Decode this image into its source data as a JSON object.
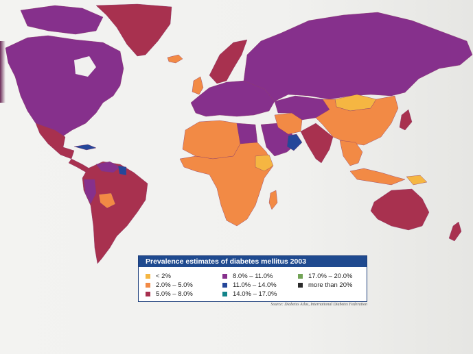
{
  "legend": {
    "title": "Prevalence estimates of diabetes mellitus 2003",
    "items": [
      {
        "label": "< 2%",
        "color": "#f5b642"
      },
      {
        "label": "2.0% – 5.0%",
        "color": "#f28a45"
      },
      {
        "label": "5.0% – 8.0%",
        "color": "#a8314f"
      },
      {
        "label": "8.0% – 11.0%",
        "color": "#86308c"
      },
      {
        "label": "11.0% – 14.0%",
        "color": "#25479a"
      },
      {
        "label": "14.0% – 17.0%",
        "color": "#13848a"
      },
      {
        "label": "17.0% – 20.0%",
        "color": "#72a356"
      },
      {
        "label": "more than 20%",
        "color": "#2b2b2b"
      }
    ]
  },
  "source": "Source: Diabetes Atlas, International Diabetes Federation",
  "regions": [
    {
      "name": "North America",
      "color": "#86308c"
    },
    {
      "name": "Greenland",
      "color": "#a8314f"
    },
    {
      "name": "Canadian Arctic islands",
      "color": "#86308c"
    },
    {
      "name": "Mexico",
      "color": "#a8314f"
    },
    {
      "name": "Central America",
      "color": "#a8314f"
    },
    {
      "name": "Cuba",
      "color": "#25479a"
    },
    {
      "name": "South America",
      "color": "#a8314f"
    },
    {
      "name": "Venezuela",
      "color": "#86308c"
    },
    {
      "name": "Guianas",
      "color": "#25479a"
    },
    {
      "name": "Bolivia",
      "color": "#f28a45"
    },
    {
      "name": "Peru",
      "color": "#86308c"
    },
    {
      "name": "Iceland",
      "color": "#f28a45"
    },
    {
      "name": "Scandinavia",
      "color": "#a8314f"
    },
    {
      "name": "United Kingdom",
      "color": "#f28a45"
    },
    {
      "name": "Europe",
      "color": "#86308c"
    },
    {
      "name": "North Africa",
      "color": "#f28a45"
    },
    {
      "name": "Egypt",
      "color": "#86308c"
    },
    {
      "name": "Sub-Saharan Africa",
      "color": "#f28a45"
    },
    {
      "name": "Ethiopia",
      "color": "#f5b642"
    },
    {
      "name": "Madagascar",
      "color": "#f28a45"
    },
    {
      "name": "Arabian Peninsula",
      "color": "#86308c"
    },
    {
      "name": "Oman",
      "color": "#25479a"
    },
    {
      "name": "Iran",
      "color": "#f28a45"
    },
    {
      "name": "Central Asia",
      "color": "#86308c"
    },
    {
      "name": "Russia",
      "color": "#86308c"
    },
    {
      "name": "Mongolia",
      "color": "#f5b642"
    },
    {
      "name": "China",
      "color": "#f28a45"
    },
    {
      "name": "India",
      "color": "#a8314f"
    },
    {
      "name": "Southeast Asia",
      "color": "#f28a45"
    },
    {
      "name": "Japan",
      "color": "#a8314f"
    },
    {
      "name": "Indonesia",
      "color": "#f28a45"
    },
    {
      "name": "Papua New Guinea",
      "color": "#f5b642"
    },
    {
      "name": "Australia",
      "color": "#a8314f"
    },
    {
      "name": "New Zealand",
      "color": "#a8314f"
    }
  ]
}
